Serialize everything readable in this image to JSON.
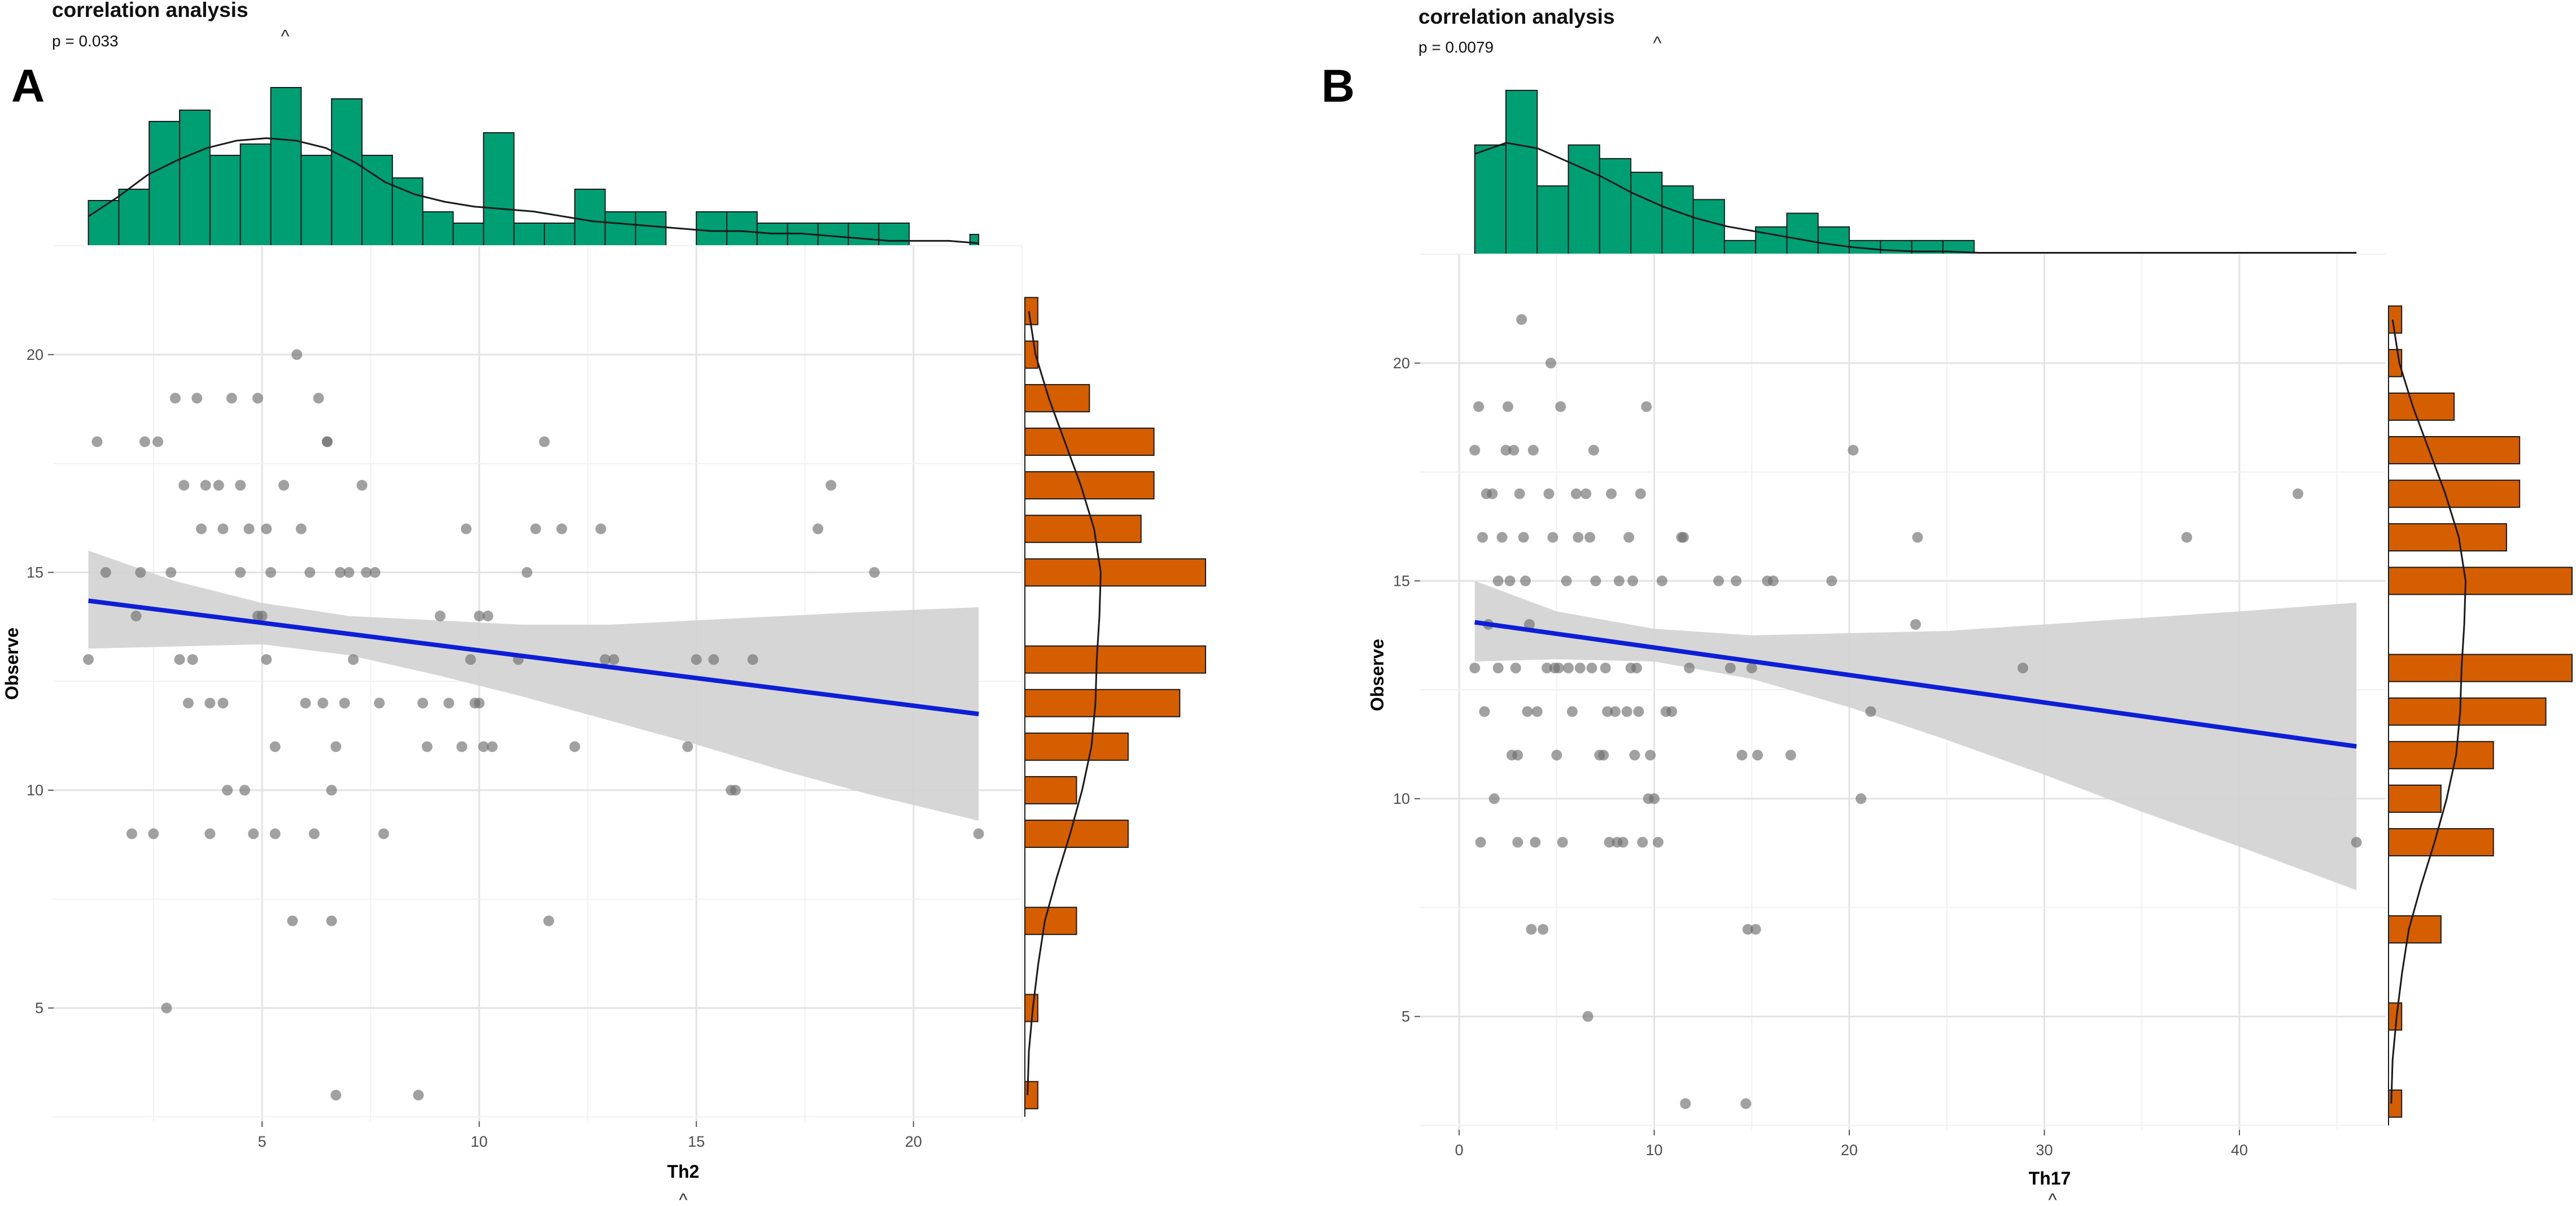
{
  "chart_data": [
    {
      "type": "scatter",
      "panel_label": "A",
      "title": "correlation analysis",
      "subtitle": "p = 0.033",
      "caret_symbol": "^",
      "xlabel": "Th2",
      "ylabel": "Observe",
      "xlim": [
        0.2,
        22.5
      ],
      "ylim": [
        2.4,
        22.5
      ],
      "xticks": [
        5,
        10,
        15,
        20
      ],
      "yticks": [
        5,
        10,
        15,
        20
      ],
      "grid": true,
      "regression": {
        "x": [
          1,
          21.5
        ],
        "y": [
          14.35,
          11.75
        ],
        "color": "#0d1fd6"
      },
      "confidence_band": {
        "x": [
          1,
          3,
          5,
          7,
          9,
          11,
          13,
          15,
          17,
          19,
          21.5
        ],
        "lower": [
          13.25,
          13.3,
          13.35,
          13.1,
          12.65,
          12.15,
          11.6,
          11.05,
          10.45,
          9.9,
          9.3
        ],
        "upper": [
          15.5,
          14.8,
          14.3,
          14.0,
          13.9,
          13.8,
          13.8,
          13.9,
          14.0,
          14.1,
          14.2
        ]
      },
      "points": [
        [
          1,
          13
        ],
        [
          1.2,
          18
        ],
        [
          1.4,
          15
        ],
        [
          2,
          9
        ],
        [
          2.1,
          14
        ],
        [
          2.2,
          15
        ],
        [
          2.3,
          18
        ],
        [
          2.5,
          9
        ],
        [
          2.6,
          18
        ],
        [
          2.8,
          5
        ],
        [
          2.9,
          15
        ],
        [
          3,
          19
        ],
        [
          3.1,
          13
        ],
        [
          3.2,
          17
        ],
        [
          3.3,
          12
        ],
        [
          3.4,
          13
        ],
        [
          3.5,
          19
        ],
        [
          3.6,
          16
        ],
        [
          3.7,
          17
        ],
        [
          3.8,
          9
        ],
        [
          3.8,
          12
        ],
        [
          4,
          17
        ],
        [
          4.1,
          12
        ],
        [
          4.1,
          16
        ],
        [
          4.2,
          10
        ],
        [
          4.3,
          19
        ],
        [
          4.5,
          17
        ],
        [
          4.5,
          15
        ],
        [
          4.6,
          10
        ],
        [
          4.7,
          16
        ],
        [
          4.8,
          9
        ],
        [
          4.9,
          14
        ],
        [
          4.9,
          19
        ],
        [
          5,
          14
        ],
        [
          5.1,
          16
        ],
        [
          5.1,
          13
        ],
        [
          5.2,
          15
        ],
        [
          5.3,
          9
        ],
        [
          5.3,
          11
        ],
        [
          5.5,
          17
        ],
        [
          5.7,
          7
        ],
        [
          5.8,
          20
        ],
        [
          5.9,
          16
        ],
        [
          6,
          12
        ],
        [
          6.1,
          15
        ],
        [
          6.2,
          9
        ],
        [
          6.3,
          19
        ],
        [
          6.4,
          12
        ],
        [
          6.5,
          18
        ],
        [
          6.5,
          18
        ],
        [
          6.6,
          7
        ],
        [
          6.6,
          10
        ],
        [
          6.7,
          11
        ],
        [
          6.7,
          3
        ],
        [
          6.8,
          15
        ],
        [
          6.9,
          12
        ],
        [
          7,
          15
        ],
        [
          7.1,
          13
        ],
        [
          7.3,
          17
        ],
        [
          7.4,
          15
        ],
        [
          7.6,
          15
        ],
        [
          7.7,
          12
        ],
        [
          7.8,
          9
        ],
        [
          8.6,
          3
        ],
        [
          8.7,
          12
        ],
        [
          8.8,
          11
        ],
        [
          9.1,
          14
        ],
        [
          9.3,
          12
        ],
        [
          9.6,
          11
        ],
        [
          9.7,
          16
        ],
        [
          9.8,
          13
        ],
        [
          9.9,
          12
        ],
        [
          10,
          12
        ],
        [
          10,
          14
        ],
        [
          10.1,
          11
        ],
        [
          10.2,
          14
        ],
        [
          10.3,
          11
        ],
        [
          10.9,
          13
        ],
        [
          11.1,
          15
        ],
        [
          11.3,
          16
        ],
        [
          11.5,
          18
        ],
        [
          11.6,
          7
        ],
        [
          11.9,
          16
        ],
        [
          12.2,
          11
        ],
        [
          12.8,
          16
        ],
        [
          12.9,
          13
        ],
        [
          13.1,
          13
        ],
        [
          14.8,
          11
        ],
        [
          15,
          13
        ],
        [
          15.4,
          13
        ],
        [
          15.8,
          10
        ],
        [
          15.9,
          10
        ],
        [
          16.3,
          13
        ],
        [
          17.8,
          16
        ],
        [
          18.1,
          17
        ],
        [
          19.1,
          15
        ],
        [
          21.5,
          9
        ]
      ],
      "top_histogram": {
        "bins": [
          1,
          1.7,
          2.4,
          3.1,
          3.8,
          4.5,
          5.2,
          5.9,
          6.6,
          7.3,
          8,
          8.7,
          9.4,
          10.1,
          10.8,
          11.5,
          12.2,
          12.9,
          13.6,
          14.3,
          15,
          15.7,
          16.4,
          17.1,
          17.8,
          18.5,
          19.2,
          19.9,
          20.6,
          21.3,
          21.5
        ],
        "counts": [
          4,
          5,
          11,
          12,
          8,
          9,
          14,
          8,
          13,
          8,
          6,
          3,
          2,
          10,
          2,
          2,
          5,
          3,
          3,
          0,
          3,
          3,
          2,
          2,
          2,
          2,
          2,
          0,
          0,
          1
        ],
        "density": [
          0.12,
          0.2,
          0.29,
          0.35,
          0.4,
          0.43,
          0.44,
          0.43,
          0.4,
          0.34,
          0.26,
          0.21,
          0.18,
          0.16,
          0.15,
          0.14,
          0.12,
          0.1,
          0.09,
          0.08,
          0.07,
          0.06,
          0.06,
          0.05,
          0.05,
          0.04,
          0.03,
          0.02,
          0.02,
          0.02,
          0.01
        ]
      },
      "right_histogram": {
        "bins": [
          3,
          4,
          5,
          6,
          7,
          8,
          9,
          10,
          11,
          12,
          13,
          14,
          15,
          16,
          17,
          18,
          19,
          20,
          21
        ],
        "counts": [
          1,
          0,
          1,
          0,
          4,
          0,
          8,
          4,
          8,
          12,
          14,
          0,
          14,
          9,
          10,
          10,
          5,
          1,
          1
        ],
        "density": [
          0.02,
          0.03,
          0.06,
          0.1,
          0.15,
          0.24,
          0.34,
          0.43,
          0.5,
          0.53,
          0.54,
          0.56,
          0.57,
          0.52,
          0.42,
          0.3,
          0.18,
          0.08,
          0.03
        ]
      },
      "colors": {
        "top_hist": "#009e73",
        "right_hist": "#d55e00",
        "points": "#6f6f6f",
        "band": "#d1d1d1"
      }
    },
    {
      "type": "scatter",
      "panel_label": "B",
      "title": "correlation analysis",
      "subtitle": "p = 0.0079",
      "caret_symbol": "^",
      "xlabel": "Th17",
      "ylabel": "Observe",
      "xlim": [
        -2,
        47.5
      ],
      "ylim": [
        2.4,
        22.5
      ],
      "xticks": [
        0,
        10,
        20,
        30,
        40
      ],
      "yticks": [
        5,
        10,
        15,
        20
      ],
      "grid": true,
      "regression": {
        "x": [
          0.8,
          46
        ],
        "y": [
          14.05,
          11.2
        ],
        "color": "#0d1fd6"
      },
      "confidence_band": {
        "x": [
          0.8,
          5,
          10,
          15,
          20,
          25,
          30,
          35,
          40,
          46
        ],
        "lower": [
          13.15,
          13.2,
          13.15,
          12.75,
          12.1,
          11.35,
          10.55,
          9.7,
          8.9,
          7.9
        ],
        "upper": [
          15.0,
          14.3,
          13.9,
          13.75,
          13.8,
          13.85,
          14.0,
          14.15,
          14.3,
          14.5
        ]
      },
      "points": [
        [
          0.8,
          13
        ],
        [
          0.8,
          18
        ],
        [
          1,
          19
        ],
        [
          1.1,
          9
        ],
        [
          1.2,
          16
        ],
        [
          1.3,
          12
        ],
        [
          1.4,
          17
        ],
        [
          1.5,
          14
        ],
        [
          1.7,
          17
        ],
        [
          1.8,
          10
        ],
        [
          2,
          15
        ],
        [
          2,
          13
        ],
        [
          2.2,
          16
        ],
        [
          2.4,
          18
        ],
        [
          2.5,
          19
        ],
        [
          2.6,
          15
        ],
        [
          2.7,
          11
        ],
        [
          2.8,
          18
        ],
        [
          2.9,
          13
        ],
        [
          3,
          9
        ],
        [
          3,
          11
        ],
        [
          3.1,
          17
        ],
        [
          3.2,
          21
        ],
        [
          3.3,
          16
        ],
        [
          3.4,
          15
        ],
        [
          3.5,
          12
        ],
        [
          3.6,
          14
        ],
        [
          3.7,
          7
        ],
        [
          3.8,
          18
        ],
        [
          3.9,
          9
        ],
        [
          4,
          12
        ],
        [
          4.3,
          7
        ],
        [
          4.5,
          13
        ],
        [
          4.6,
          17
        ],
        [
          4.7,
          20
        ],
        [
          4.8,
          16
        ],
        [
          4.9,
          13
        ],
        [
          5,
          11
        ],
        [
          5.1,
          13
        ],
        [
          5.2,
          19
        ],
        [
          5.3,
          9
        ],
        [
          5.5,
          15
        ],
        [
          5.6,
          13
        ],
        [
          5.8,
          12
        ],
        [
          6,
          17
        ],
        [
          6.1,
          16
        ],
        [
          6.2,
          13
        ],
        [
          6.5,
          17
        ],
        [
          6.6,
          5
        ],
        [
          6.7,
          16
        ],
        [
          6.8,
          13
        ],
        [
          6.9,
          18
        ],
        [
          7,
          15
        ],
        [
          7.2,
          11
        ],
        [
          7.4,
          11
        ],
        [
          7.5,
          13
        ],
        [
          7.6,
          12
        ],
        [
          7.7,
          9
        ],
        [
          7.8,
          17
        ],
        [
          8,
          12
        ],
        [
          8.1,
          9
        ],
        [
          8.2,
          15
        ],
        [
          8.4,
          9
        ],
        [
          8.6,
          12
        ],
        [
          8.7,
          16
        ],
        [
          8.8,
          13
        ],
        [
          8.9,
          15
        ],
        [
          9,
          11
        ],
        [
          9.1,
          13
        ],
        [
          9.2,
          12
        ],
        [
          9.3,
          17
        ],
        [
          9.4,
          9
        ],
        [
          9.6,
          19
        ],
        [
          9.7,
          10
        ],
        [
          9.8,
          11
        ],
        [
          10,
          10
        ],
        [
          10.2,
          9
        ],
        [
          10.4,
          15
        ],
        [
          10.6,
          12
        ],
        [
          10.9,
          12
        ],
        [
          11.4,
          16
        ],
        [
          11.5,
          16
        ],
        [
          11.6,
          3
        ],
        [
          11.8,
          13
        ],
        [
          13.3,
          15
        ],
        [
          13.9,
          13
        ],
        [
          14.2,
          15
        ],
        [
          14.5,
          11
        ],
        [
          14.7,
          3
        ],
        [
          14.8,
          7
        ],
        [
          15,
          13
        ],
        [
          15.2,
          7
        ],
        [
          15.3,
          11
        ],
        [
          15.8,
          15
        ],
        [
          16.1,
          15
        ],
        [
          17,
          11
        ],
        [
          19.1,
          15
        ],
        [
          20.2,
          18
        ],
        [
          20.6,
          10
        ],
        [
          21.1,
          12
        ],
        [
          23.4,
          14
        ],
        [
          23.5,
          16
        ],
        [
          28.9,
          13
        ],
        [
          37.3,
          16
        ],
        [
          43,
          17
        ],
        [
          46,
          9
        ]
      ],
      "top_histogram": {
        "bins": [
          0.8,
          2.4,
          4,
          5.6,
          7.2,
          8.8,
          10.4,
          12,
          13.6,
          15.2,
          16.8,
          18.4,
          20,
          21.6,
          23.2,
          24.8,
          26.4,
          28,
          29.6,
          31.2,
          32.8,
          34.4,
          36,
          37.6,
          39.2,
          40.8,
          42.4,
          44,
          46
        ],
        "counts": [
          8,
          12,
          5,
          8,
          7,
          6,
          5,
          4,
          1,
          2,
          3,
          2,
          1,
          1,
          1,
          1,
          0,
          0,
          0,
          0,
          0,
          0,
          0,
          0,
          0,
          0,
          0,
          0
        ],
        "density": [
          0.72,
          0.8,
          0.76,
          0.66,
          0.56,
          0.44,
          0.34,
          0.26,
          0.2,
          0.16,
          0.12,
          0.08,
          0.05,
          0.03,
          0.02,
          0.02,
          0.01,
          0.01,
          0.01,
          0.01,
          0.01,
          0.01,
          0.01,
          0.01,
          0.01,
          0.01,
          0.01,
          0.01,
          0.01
        ]
      },
      "right_histogram": {
        "bins": [
          3,
          4,
          5,
          6,
          7,
          8,
          9,
          10,
          11,
          12,
          13,
          14,
          15,
          16,
          17,
          18,
          19,
          20,
          21
        ],
        "counts": [
          1,
          0,
          1,
          0,
          4,
          0,
          8,
          4,
          8,
          12,
          14,
          0,
          14,
          9,
          10,
          10,
          5,
          1,
          1
        ],
        "density": [
          0.02,
          0.03,
          0.06,
          0.1,
          0.15,
          0.24,
          0.34,
          0.43,
          0.5,
          0.53,
          0.54,
          0.56,
          0.57,
          0.52,
          0.42,
          0.3,
          0.18,
          0.08,
          0.03
        ]
      },
      "colors": {
        "top_hist": "#009e73",
        "right_hist": "#d55e00",
        "points": "#6f6f6f",
        "band": "#d1d1d1"
      }
    }
  ]
}
